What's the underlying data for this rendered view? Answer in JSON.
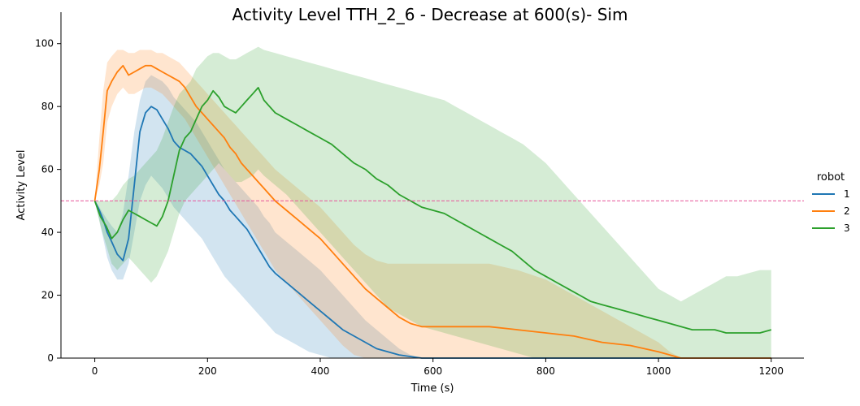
{
  "chart_data": {
    "type": "line",
    "title": "Activity Level TTH_2_6 - Decrease at 600(s)- Sim",
    "xlabel": "Time (s)",
    "ylabel": "Activity Level",
    "xlim": [
      -60,
      1258
    ],
    "ylim": [
      0,
      110
    ],
    "xticks": [
      0,
      200,
      400,
      600,
      800,
      1000,
      1200
    ],
    "yticks": [
      0,
      20,
      40,
      60,
      80,
      100
    ],
    "grid": false,
    "legend": {
      "title": "robot",
      "placement": "right"
    },
    "reference_line": {
      "y": 50,
      "style": "dashed",
      "color": "#e8559a"
    },
    "series": [
      {
        "name": "1",
        "color": "#1f77b4",
        "x": [
          0,
          8,
          15,
          22,
          30,
          40,
          50,
          60,
          70,
          80,
          90,
          100,
          110,
          120,
          130,
          140,
          150,
          160,
          170,
          180,
          190,
          200,
          210,
          220,
          230,
          240,
          250,
          260,
          270,
          280,
          290,
          300,
          310,
          320,
          340,
          360,
          380,
          400,
          420,
          440,
          460,
          480,
          500,
          520,
          540,
          560,
          580,
          600,
          700,
          800,
          900,
          1000,
          1100,
          1200
        ],
        "y": [
          50,
          47,
          44,
          40,
          37,
          33,
          31,
          38,
          55,
          72,
          78,
          80,
          79,
          76,
          73,
          69,
          67,
          66,
          65,
          63,
          61,
          58,
          55,
          52,
          50,
          47,
          45,
          43,
          41,
          38,
          35,
          32,
          29,
          27,
          24,
          21,
          18,
          15,
          12,
          9,
          7,
          5,
          3,
          2,
          1,
          0.5,
          0,
          0,
          0,
          0,
          0,
          0,
          0,
          0
        ],
        "upper": [
          50,
          48,
          46,
          44,
          42,
          40,
          46,
          58,
          72,
          82,
          88,
          90,
          89,
          88,
          86,
          83,
          81,
          79,
          77,
          75,
          72,
          69,
          66,
          63,
          60,
          58,
          56,
          54,
          52,
          50,
          48,
          45,
          43,
          40,
          37,
          34,
          31,
          28,
          24,
          20,
          16,
          12,
          9,
          6,
          3,
          1,
          0,
          0,
          0,
          0,
          0,
          0,
          0,
          0
        ],
        "lower": [
          50,
          44,
          38,
          32,
          28,
          25,
          25,
          30,
          40,
          50,
          55,
          58,
          56,
          54,
          51,
          48,
          46,
          44,
          42,
          40,
          38,
          35,
          32,
          29,
          26,
          24,
          22,
          20,
          18,
          16,
          14,
          12,
          10,
          8,
          6,
          4,
          2,
          1,
          0,
          0,
          0,
          0,
          0,
          0,
          0,
          0,
          0,
          0,
          0,
          0,
          0,
          0,
          0,
          0
        ]
      },
      {
        "name": "2",
        "color": "#ff7f0e",
        "x": [
          0,
          8,
          15,
          22,
          30,
          40,
          50,
          60,
          70,
          80,
          90,
          100,
          110,
          120,
          130,
          140,
          150,
          160,
          170,
          180,
          190,
          200,
          210,
          220,
          230,
          240,
          250,
          260,
          270,
          280,
          290,
          300,
          310,
          320,
          340,
          360,
          380,
          400,
          420,
          440,
          460,
          480,
          500,
          520,
          540,
          560,
          580,
          600,
          650,
          700,
          750,
          800,
          850,
          900,
          950,
          1000,
          1020,
          1040,
          1100,
          1200
        ],
        "y": [
          50,
          60,
          72,
          85,
          88,
          91,
          93,
          90,
          91,
          92,
          93,
          93,
          92,
          91,
          90,
          89,
          88,
          86,
          83,
          80,
          78,
          76,
          74,
          72,
          70,
          67,
          65,
          62,
          60,
          58,
          56,
          54,
          52,
          50,
          47,
          44,
          41,
          38,
          34,
          30,
          26,
          22,
          19,
          16,
          13,
          11,
          10,
          10,
          10,
          10,
          9,
          8,
          7,
          5,
          4,
          2,
          1,
          0,
          0,
          0
        ],
        "upper": [
          50,
          70,
          85,
          94,
          96,
          98,
          98,
          97,
          97,
          98,
          98,
          98,
          97,
          97,
          96,
          95,
          94,
          92,
          90,
          88,
          86,
          84,
          82,
          80,
          78,
          76,
          74,
          72,
          70,
          68,
          66,
          64,
          62,
          60,
          57,
          54,
          51,
          48,
          44,
          40,
          36,
          33,
          31,
          30,
          30,
          30,
          30,
          30,
          30,
          30,
          28,
          25,
          20,
          15,
          10,
          5,
          2,
          0,
          0,
          0
        ],
        "lower": [
          50,
          55,
          62,
          75,
          80,
          84,
          86,
          84,
          84,
          85,
          86,
          86,
          85,
          84,
          82,
          80,
          78,
          76,
          73,
          70,
          67,
          64,
          61,
          58,
          55,
          52,
          49,
          46,
          43,
          40,
          37,
          34,
          31,
          28,
          24,
          20,
          16,
          12,
          8,
          4,
          1,
          0,
          0,
          0,
          0,
          0,
          0,
          0,
          0,
          0,
          0,
          0,
          0,
          0,
          0,
          0,
          0,
          0,
          0,
          0
        ]
      },
      {
        "name": "3",
        "color": "#2ca02c",
        "x": [
          0,
          10,
          20,
          30,
          40,
          50,
          60,
          70,
          80,
          90,
          100,
          110,
          120,
          130,
          140,
          150,
          160,
          170,
          180,
          190,
          200,
          210,
          220,
          230,
          240,
          250,
          260,
          270,
          280,
          290,
          300,
          320,
          340,
          360,
          380,
          400,
          420,
          440,
          460,
          480,
          500,
          520,
          540,
          560,
          580,
          600,
          620,
          640,
          660,
          680,
          700,
          720,
          740,
          760,
          780,
          800,
          820,
          840,
          860,
          880,
          900,
          920,
          940,
          960,
          980,
          1000,
          1020,
          1040,
          1060,
          1080,
          1100,
          1120,
          1140,
          1160,
          1180,
          1200
        ],
        "y": [
          50,
          45,
          42,
          38,
          40,
          44,
          47,
          46,
          45,
          44,
          43,
          42,
          45,
          50,
          58,
          66,
          70,
          72,
          76,
          80,
          82,
          85,
          83,
          80,
          79,
          78,
          80,
          82,
          84,
          86,
          82,
          78,
          76,
          74,
          72,
          70,
          68,
          65,
          62,
          60,
          57,
          55,
          52,
          50,
          48,
          47,
          46,
          44,
          42,
          40,
          38,
          36,
          34,
          31,
          28,
          26,
          24,
          22,
          20,
          18,
          17,
          16,
          15,
          14,
          13,
          12,
          11,
          10,
          9,
          9,
          9,
          8,
          8,
          8,
          8,
          9
        ],
        "upper": [
          50,
          50,
          50,
          50,
          52,
          55,
          57,
          58,
          60,
          62,
          64,
          66,
          70,
          75,
          80,
          84,
          86,
          88,
          92,
          94,
          96,
          97,
          97,
          96,
          95,
          95,
          96,
          97,
          98,
          99,
          98,
          97,
          96,
          95,
          94,
          93,
          92,
          91,
          90,
          89,
          88,
          87,
          86,
          85,
          84,
          83,
          82,
          80,
          78,
          76,
          74,
          72,
          70,
          68,
          65,
          62,
          58,
          54,
          50,
          46,
          42,
          38,
          34,
          30,
          26,
          22,
          20,
          18,
          20,
          22,
          24,
          26,
          26,
          27,
          28,
          28
        ],
        "lower": [
          50,
          42,
          36,
          30,
          28,
          30,
          32,
          30,
          28,
          26,
          24,
          26,
          30,
          34,
          40,
          46,
          50,
          52,
          54,
          56,
          58,
          60,
          62,
          60,
          58,
          56,
          56,
          57,
          58,
          60,
          58,
          55,
          52,
          48,
          44,
          40,
          36,
          32,
          28,
          24,
          20,
          16,
          14,
          12,
          10,
          9,
          8,
          7,
          6,
          5,
          4,
          3,
          2,
          1,
          0,
          0,
          0,
          0,
          0,
          0,
          0,
          0,
          0,
          0,
          0,
          0,
          0,
          0,
          0,
          0,
          0,
          0,
          0,
          0,
          0,
          0
        ]
      }
    ]
  }
}
